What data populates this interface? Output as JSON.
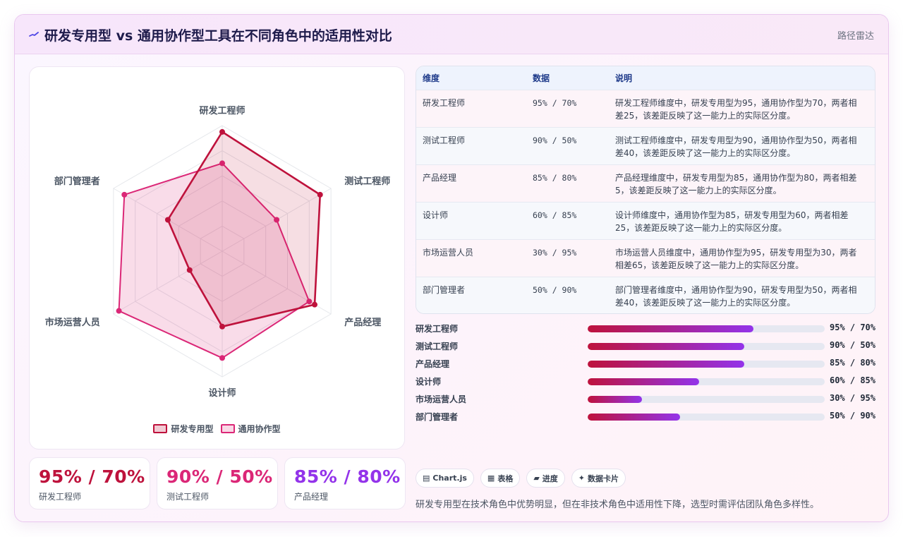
{
  "header": {
    "title": "研发专用型 vs 通用协作型工具在不同角色中的适用性对比",
    "tag": "路径雷达"
  },
  "chart_data": {
    "type": "radar",
    "categories": [
      "研发工程师",
      "测试工程师",
      "产品经理",
      "设计师",
      "市场运营人员",
      "部门管理者"
    ],
    "series": [
      {
        "name": "研发专用型",
        "values": [
          95,
          90,
          85,
          60,
          30,
          50
        ],
        "color": "#be123c"
      },
      {
        "name": "通用协作型",
        "values": [
          70,
          50,
          80,
          85,
          95,
          90
        ],
        "color": "#db2777"
      }
    ],
    "range": [
      0,
      100
    ],
    "legend": "bottom"
  },
  "kpis": [
    {
      "value": "95% / 70%",
      "label": "研发工程师",
      "color": "#be123c"
    },
    {
      "value": "90% / 50%",
      "label": "测试工程师",
      "color": "#db2777"
    },
    {
      "value": "85% / 80%",
      "label": "产品经理",
      "color": "#9333ea"
    }
  ],
  "table": {
    "headers": [
      "维度",
      "数据",
      "说明"
    ],
    "rows": [
      {
        "dim": "研发工程师",
        "data": "95% / 70%",
        "desc": "研发工程师维度中，研发专用型为95，通用协作型为70，两者相差25，该差距反映了这一能力上的实际区分度。"
      },
      {
        "dim": "测试工程师",
        "data": "90% / 50%",
        "desc": "测试工程师维度中，研发专用型为90，通用协作型为50，两者相差40，该差距反映了这一能力上的实际区分度。"
      },
      {
        "dim": "产品经理",
        "data": "85% / 80%",
        "desc": "产品经理维度中，研发专用型为85，通用协作型为80，两者相差5，该差距反映了这一能力上的实际区分度。"
      },
      {
        "dim": "设计师",
        "data": "60% / 85%",
        "desc": "设计师维度中，通用协作型为85，研发专用型为60，两者相差25，该差距反映了这一能力上的实际区分度。"
      },
      {
        "dim": "市场运营人员",
        "data": "30% / 95%",
        "desc": "市场运营人员维度中，通用协作型为95，研发专用型为30，两者相差65，该差距反映了这一能力上的实际区分度。"
      },
      {
        "dim": "部门管理者",
        "data": "50% / 90%",
        "desc": "部门管理者维度中，通用协作型为90，研发专用型为50，两者相差40，该差距反映了这一能力上的实际区分度。"
      }
    ]
  },
  "progress": [
    {
      "label": "研发工程师",
      "value": "95% / 70%",
      "percent": 70
    },
    {
      "label": "测试工程师",
      "value": "90% / 50%",
      "percent": 66
    },
    {
      "label": "产品经理",
      "value": "85% / 80%",
      "percent": 66
    },
    {
      "label": "设计师",
      "value": "60% / 85%",
      "percent": 47
    },
    {
      "label": "市场运营人员",
      "value": "30% / 95%",
      "percent": 23
    },
    {
      "label": "部门管理者",
      "value": "50% / 90%",
      "percent": 39
    }
  ],
  "chips": [
    {
      "icon": "▤",
      "icon_name": "chart-icon",
      "label": "Chart.js"
    },
    {
      "icon": "▦",
      "icon_name": "table-icon",
      "label": "表格"
    },
    {
      "icon": "▰",
      "icon_name": "progress-icon",
      "label": "进度"
    },
    {
      "icon": "✦",
      "icon_name": "sparkle-icon",
      "label": "数据卡片"
    }
  ],
  "footnote": "研发专用型在技术角色中优势明显，但在非技术角色中适用性下降，选型时需评估团队角色多样性。"
}
